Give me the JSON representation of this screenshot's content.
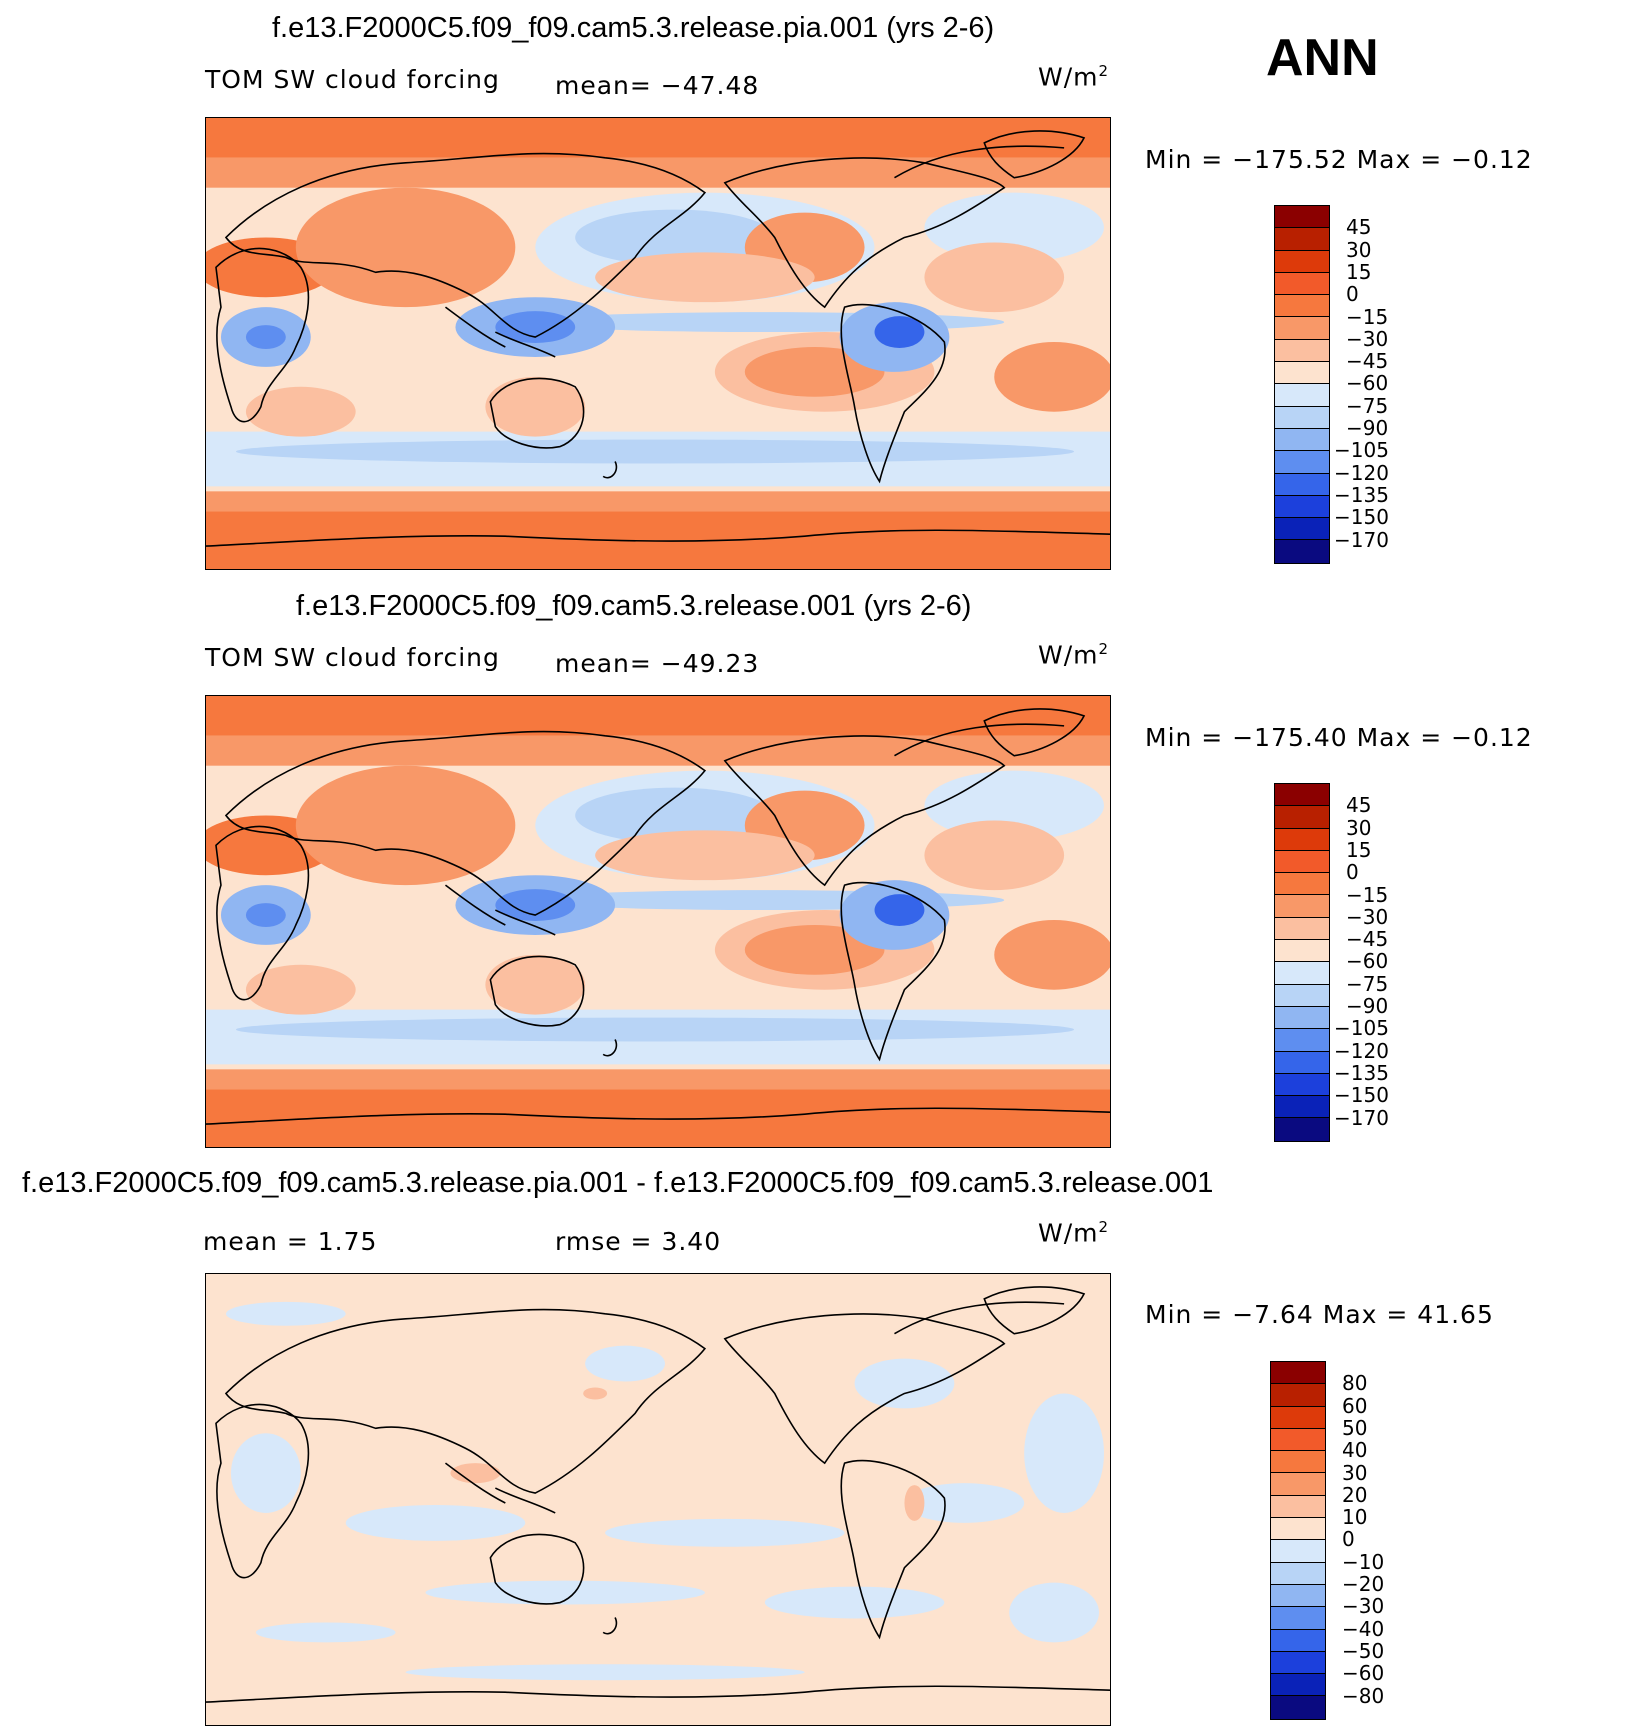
{
  "season": "ANN",
  "units_base": "W/m",
  "units_exp": "2",
  "chart_data": [
    {
      "type": "heatmap",
      "title": "f.e13.F2000C5.f09_f09.cam5.3.release.pia.001 (yrs 2-6)",
      "variable": "TOM SW cloud forcing",
      "mean_text": "mean= −47.48",
      "mean": -47.48,
      "min_max_text": "Min = −175.52 Max =   −0.12",
      "min": -175.52,
      "max": -0.12,
      "colorbar_labels": [
        "45",
        "30",
        "15",
        "0",
        "−15",
        "−30",
        "−45",
        "−60",
        "−75",
        "−90",
        "−105",
        "−120",
        "−135",
        "−150",
        "−170"
      ],
      "colorbar_colors": [
        "#8b0000",
        "#b82000",
        "#dd3a0a",
        "#f25a2a",
        "#f6783e",
        "#f89868",
        "#fbbfa0",
        "#fde3cf",
        "#d7e8fa",
        "#b8d4f6",
        "#90b6f2",
        "#5e8ef0",
        "#3565ea",
        "#1c40dc",
        "#0a22b8",
        "#0a0a80"
      ]
    },
    {
      "type": "heatmap",
      "title": "f.e13.F2000C5.f09_f09.cam5.3.release.001 (yrs 2-6)",
      "variable": "TOM SW cloud forcing",
      "mean_text": "mean= −49.23",
      "mean": -49.23,
      "min_max_text": "Min = −175.40 Max =   −0.12",
      "min": -175.4,
      "max": -0.12,
      "colorbar_labels": [
        "45",
        "30",
        "15",
        "0",
        "−15",
        "−30",
        "−45",
        "−60",
        "−75",
        "−90",
        "−105",
        "−120",
        "−135",
        "−150",
        "−170"
      ],
      "colorbar_colors": [
        "#8b0000",
        "#b82000",
        "#dd3a0a",
        "#f25a2a",
        "#f6783e",
        "#f89868",
        "#fbbfa0",
        "#fde3cf",
        "#d7e8fa",
        "#b8d4f6",
        "#90b6f2",
        "#5e8ef0",
        "#3565ea",
        "#1c40dc",
        "#0a22b8",
        "#0a0a80"
      ]
    },
    {
      "type": "heatmap",
      "title": "f.e13.F2000C5.f09_f09.cam5.3.release.pia.001 - f.e13.F2000C5.f09_f09.cam5.3.release.001",
      "mean_text": "mean =    1.75",
      "mean": 1.75,
      "rmse_text": "rmse =    3.40",
      "rmse": 3.4,
      "min_max_text": "Min =   −7.64 Max =   41.65",
      "min": -7.64,
      "max": 41.65,
      "colorbar_labels": [
        "80",
        "60",
        "50",
        "40",
        "30",
        "20",
        "10",
        "0",
        "−10",
        "−20",
        "−30",
        "−40",
        "−50",
        "−60",
        "−80"
      ],
      "colorbar_colors": [
        "#8b0000",
        "#b82000",
        "#dd3a0a",
        "#f25a2a",
        "#f6783e",
        "#f89868",
        "#fbbfa0",
        "#fde3cf",
        "#d7e8fa",
        "#b8d4f6",
        "#90b6f2",
        "#5e8ef0",
        "#3565ea",
        "#1c40dc",
        "#0a22b8",
        "#0a0a80"
      ]
    }
  ]
}
